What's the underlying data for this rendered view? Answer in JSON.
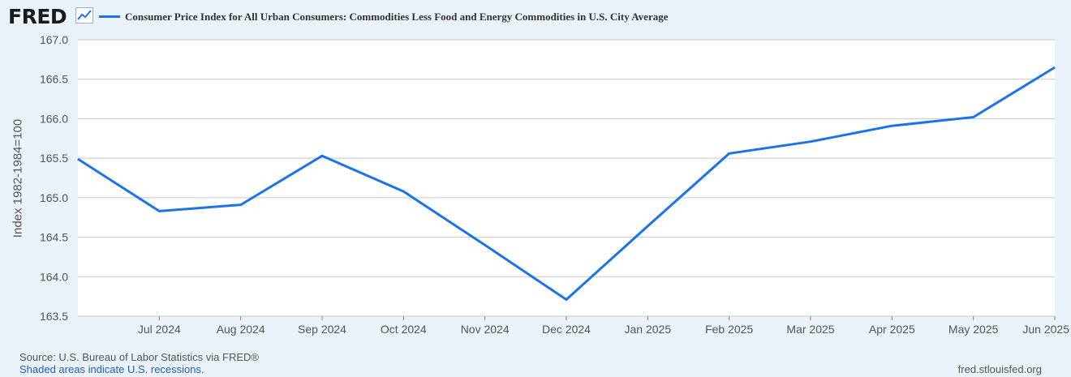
{
  "header": {
    "logo_text": "FRED",
    "logo_icon": "line-chart-icon"
  },
  "chart_data": {
    "type": "line",
    "title": "Consumer Price Index for All Urban Consumers: Commodities Less Food and Energy Commodities in U.S. City Average",
    "xlabel": "",
    "ylabel": "Index 1982-1984=100",
    "ylim": [
      163.5,
      167.0
    ],
    "yticks": [
      "163.5",
      "164.0",
      "164.5",
      "165.0",
      "165.5",
      "166.0",
      "166.5",
      "167.0"
    ],
    "x_tick_labels": [
      "Jul 2024",
      "Aug 2024",
      "Sep 2024",
      "Oct 2024",
      "Nov 2024",
      "Dec 2024",
      "Jan 2025",
      "Feb 2025",
      "Mar 2025",
      "Apr 2025",
      "May 2025",
      "Jun 2025"
    ],
    "series": [
      {
        "name": "Consumer Price Index for All Urban Consumers: Commodities Less Food and Energy Commodities in U.S. City Average",
        "color": "#1a73e8",
        "dates": [
          "Jun 2024",
          "Jul 2024",
          "Aug 2024",
          "Sep 2024",
          "Oct 2024",
          "Nov 2024",
          "Dec 2024",
          "Jan 2025",
          "Feb 2025",
          "Mar 2025",
          "Apr 2025",
          "May 2025",
          "Jun 2025"
        ],
        "values": [
          165.49,
          164.83,
          164.91,
          165.53,
          165.08,
          164.4,
          163.71,
          164.64,
          165.56,
          165.71,
          165.91,
          166.02,
          166.65
        ]
      }
    ],
    "grid": true,
    "legend": "top-left"
  },
  "footer": {
    "source": "Source: U.S. Bureau of Labor Statistics via FRED®",
    "shaded_note": "Shaded areas indicate U.S. recessions.",
    "site": "fred.stlouisfed.org"
  }
}
